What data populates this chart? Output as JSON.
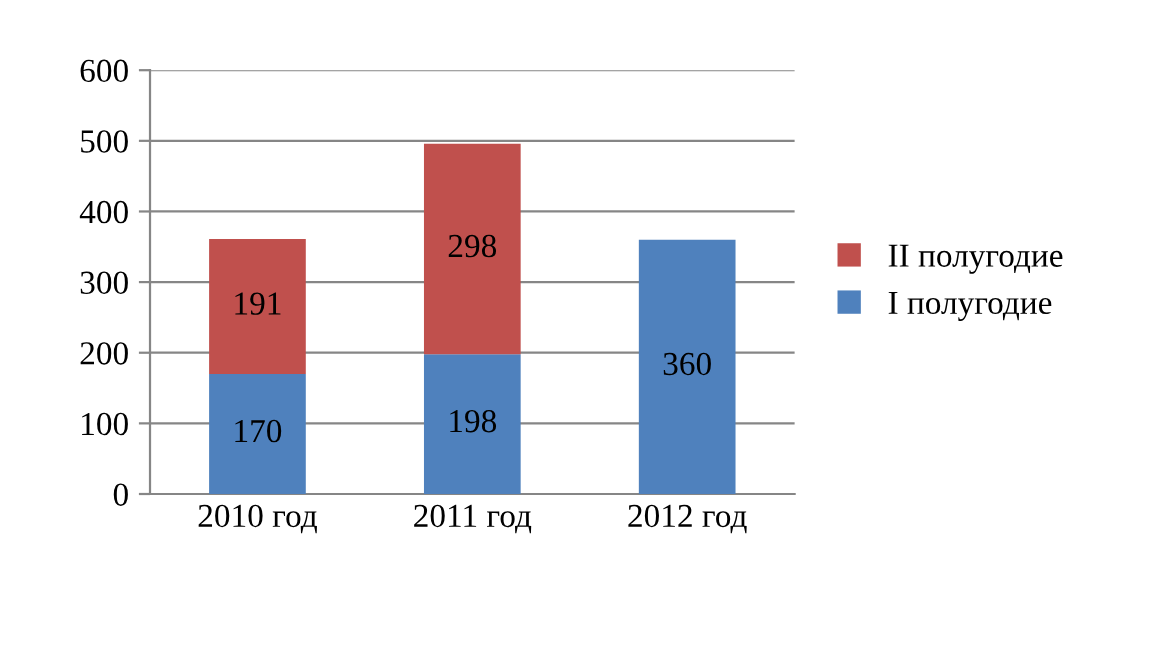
{
  "chart_data": {
    "type": "bar",
    "stacked": true,
    "categories": [
      "2010 год",
      "2011 год",
      "2012 год"
    ],
    "series": [
      {
        "name": "I полугодие",
        "color": "#4f81bd",
        "values": [
          170,
          198,
          360
        ]
      },
      {
        "name": "II полугодие",
        "color": "#c0504d",
        "values": [
          191,
          298,
          null
        ]
      }
    ],
    "ylim": [
      0,
      600
    ],
    "yticks": [
      0,
      100,
      200,
      300,
      400,
      500,
      600
    ],
    "grid": "y",
    "legend": "right",
    "data_labels": true
  }
}
